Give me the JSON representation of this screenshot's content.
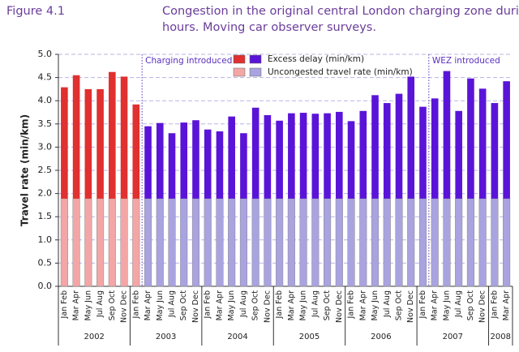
{
  "chart_data": {
    "type": "stacked_bar",
    "figure_label": "Figure 4.1",
    "title": [
      "Congestion in the original central London charging zone during charging",
      "hours. Moving car observer surveys."
    ],
    "y_label": "Travel rate (min/km)",
    "categories": [
      "Jan Feb",
      "Mar Apr",
      "May Jun",
      "Jul Aug",
      "Sep Oct",
      "Nov Dec",
      "Jan Feb",
      "Mar Apr",
      "May Jun",
      "Jul Aug",
      "Sep Oct",
      "Nov Dec",
      "Jan Feb",
      "Mar Apr",
      "May Jun",
      "Jul Aug",
      "Sep Oct",
      "Nov Dec",
      "Jan Feb",
      "Mar Apr",
      "May Jun",
      "Jul Aug",
      "Sep Oct",
      "Nov Dec",
      "Jan Feb",
      "Mar Apr",
      "May Jun",
      "Jul Aug",
      "Sep Oct",
      "Nov Dec",
      "Jan Feb",
      "Mar Apr",
      "May Jun",
      "Jul Aug",
      "Sep Oct",
      "Nov Dec",
      "Jan Feb",
      "Mar Apr"
    ],
    "groups": [
      {
        "label": "2002",
        "count": 6
      },
      {
        "label": "2003",
        "count": 6
      },
      {
        "label": "2004",
        "count": 6
      },
      {
        "label": "2005",
        "count": 6
      },
      {
        "label": "2006",
        "count": 6
      },
      {
        "label": "2007",
        "count": 6
      },
      {
        "label": "2008",
        "count": 2
      }
    ],
    "series": [
      {
        "name": "Uncongested travel rate (min/km)",
        "colors": [
          "#f4a6a6",
          "#a9a3e0"
        ],
        "values": [
          1.89,
          1.89,
          1.89,
          1.89,
          1.89,
          1.89,
          1.89,
          1.89,
          1.89,
          1.89,
          1.89,
          1.89,
          1.89,
          1.89,
          1.89,
          1.89,
          1.89,
          1.89,
          1.89,
          1.89,
          1.89,
          1.89,
          1.89,
          1.89,
          1.89,
          1.89,
          1.89,
          1.89,
          1.89,
          1.89,
          1.89,
          1.89,
          1.89,
          1.89,
          1.89,
          1.89,
          1.89,
          1.89
        ]
      },
      {
        "name": "Excess delay (min/km)",
        "colors": [
          "#e0302f",
          "#5a14d8"
        ],
        "values": [
          2.4,
          2.66,
          2.36,
          2.36,
          2.73,
          2.63,
          2.03,
          1.56,
          1.63,
          1.41,
          1.64,
          1.69,
          1.49,
          1.45,
          1.77,
          1.41,
          1.96,
          1.8,
          1.68,
          1.84,
          1.85,
          1.83,
          1.84,
          1.87,
          1.67,
          1.89,
          2.23,
          2.06,
          2.26,
          2.63,
          1.98,
          2.16,
          2.75,
          1.89,
          2.59,
          2.37,
          2.06,
          2.53
        ]
      }
    ],
    "annotations": [
      {
        "text": "Charging introduced",
        "x": 6.5
      },
      {
        "text": "WEZ introduced",
        "x": 30.5
      }
    ],
    "ylim": [
      0,
      5
    ],
    "yticks": [
      {
        "value": 0,
        "label": "0.0"
      },
      {
        "value": 0.5,
        "label": "0.5"
      },
      {
        "value": 1,
        "label": "1.0"
      },
      {
        "value": 1.5,
        "label": "1.5"
      },
      {
        "value": 2,
        "label": "2.0"
      },
      {
        "value": 2.5,
        "label": "2.5"
      },
      {
        "value": 3,
        "label": "3.0"
      },
      {
        "value": 3.5,
        "label": "3.5"
      },
      {
        "value": 4,
        "label": "4.0"
      },
      {
        "value": 4.5,
        "label": "4.5"
      },
      {
        "value": 5,
        "label": "5.0"
      }
    ],
    "grid": true
  }
}
